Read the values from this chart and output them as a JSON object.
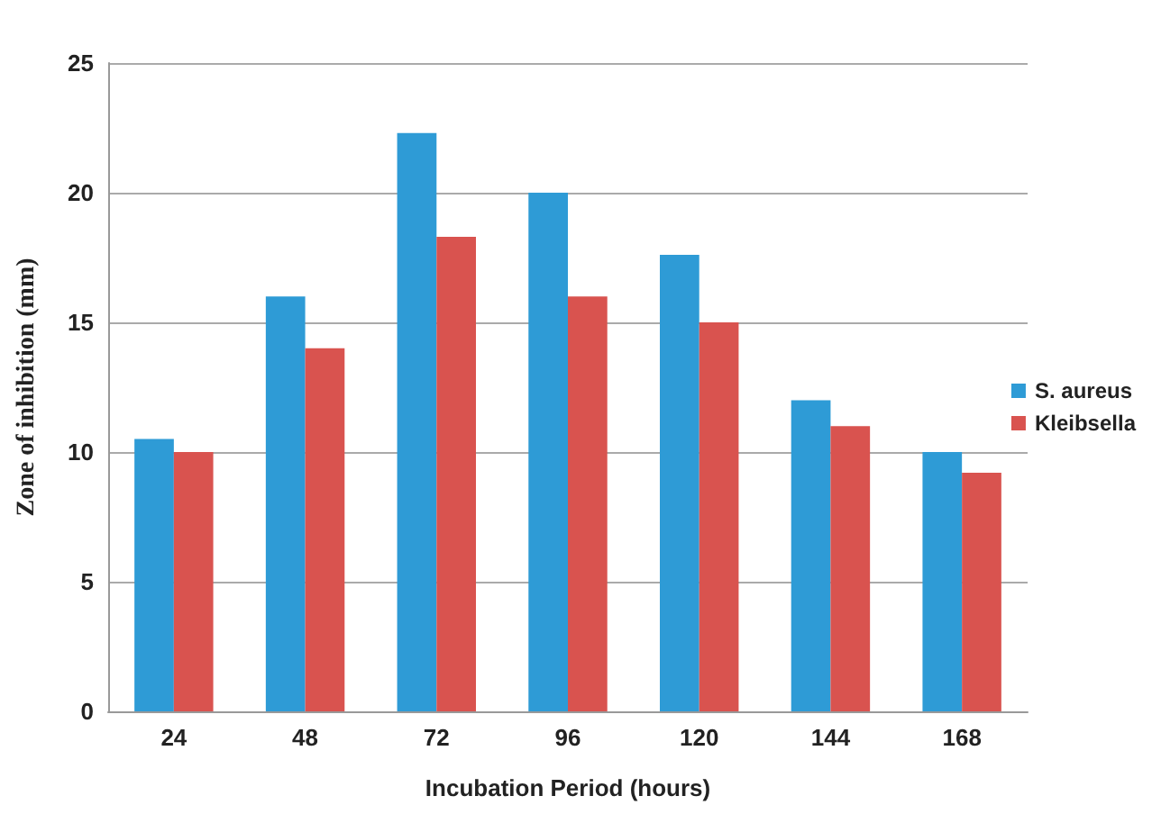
{
  "chart_data": {
    "type": "bar",
    "xlabel": "Incubation Period (hours)",
    "ylabel": "Zone of inhibition (mm)",
    "categories": [
      "24",
      "48",
      "72",
      "96",
      "120",
      "144",
      "168"
    ],
    "series": [
      {
        "name": "S. aureus",
        "color": "#2e9bd6",
        "values": [
          10.5,
          16,
          22.3,
          20,
          17.6,
          12,
          10
        ]
      },
      {
        "name": "Kleibsella",
        "color": "#d9534f",
        "values": [
          10,
          14,
          18.3,
          16,
          15,
          11,
          9.2
        ]
      }
    ],
    "ylim": [
      0,
      25
    ],
    "yticks": [
      0,
      5,
      10,
      15,
      20,
      25
    ],
    "grid": "y",
    "legend": "right"
  }
}
